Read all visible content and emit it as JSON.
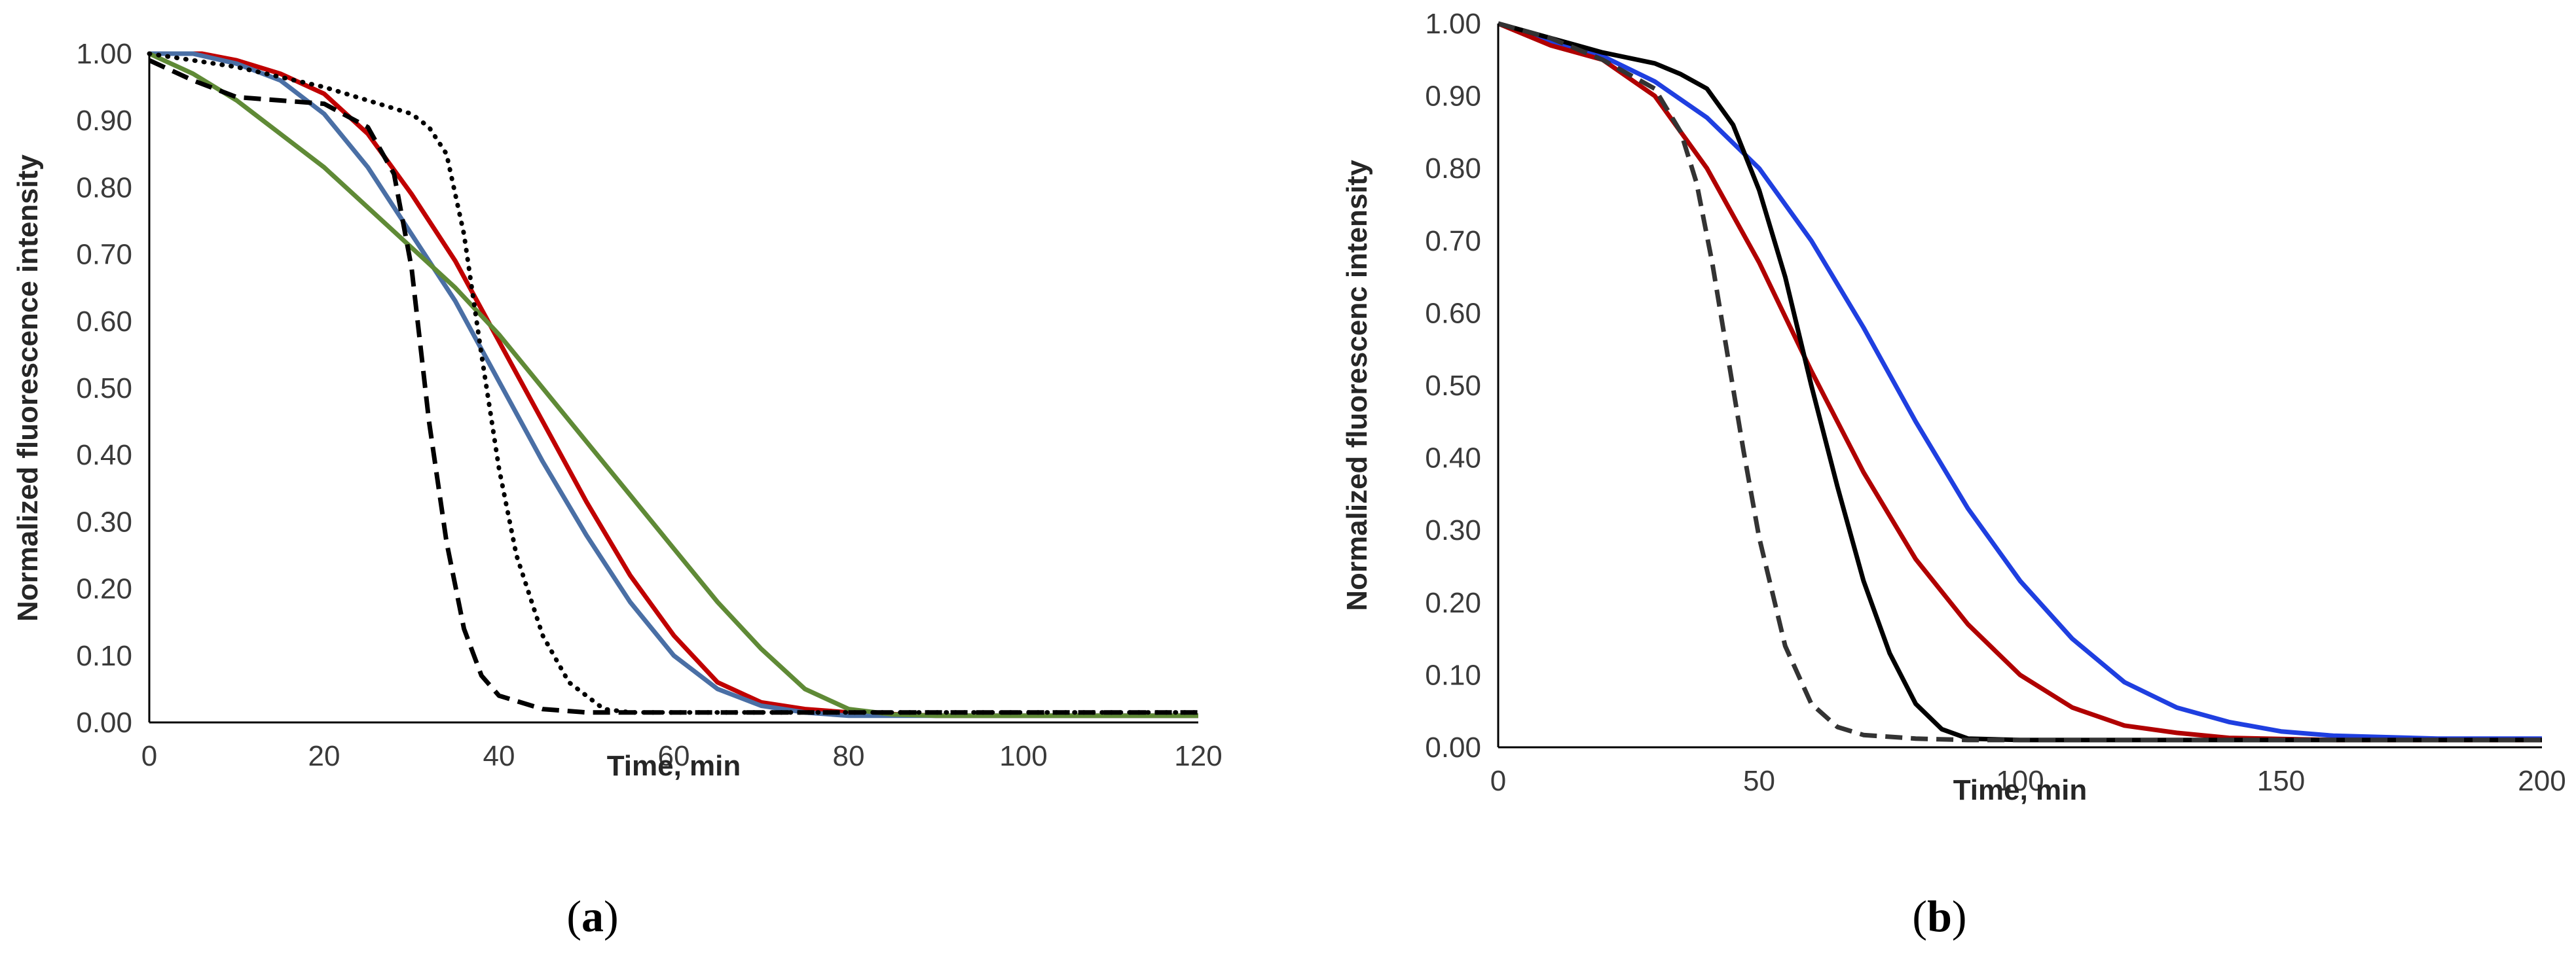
{
  "chart_data": [
    {
      "panel_label": "(a)",
      "panel_letter": "a",
      "type": "line",
      "xlabel": "Time, min",
      "ylabel": "Normalized fluorescence intensity",
      "xlim": [
        0,
        120
      ],
      "ylim": [
        0,
        1
      ],
      "xticks": [
        "0",
        "20",
        "40",
        "60",
        "80",
        "100",
        "120"
      ],
      "yticks": [
        "0.00",
        "0.10",
        "0.20",
        "0.30",
        "0.40",
        "0.50",
        "0.60",
        "0.70",
        "0.80",
        "0.90",
        "1.00"
      ],
      "grid": false,
      "series": [
        {
          "color": "#c00000",
          "style": "solid",
          "x": [
            0,
            6,
            10,
            15,
            20,
            25,
            30,
            35,
            40,
            45,
            50,
            55,
            60,
            65,
            70,
            75,
            80,
            90,
            100,
            120
          ],
          "y": [
            1.0,
            1.0,
            0.99,
            0.97,
            0.94,
            0.88,
            0.79,
            0.69,
            0.57,
            0.45,
            0.33,
            0.22,
            0.13,
            0.06,
            0.03,
            0.02,
            0.015,
            0.01,
            0.01,
            0.01
          ]
        },
        {
          "color": "#4a6fa5",
          "style": "solid",
          "x": [
            0,
            5,
            10,
            15,
            20,
            25,
            30,
            35,
            40,
            45,
            50,
            55,
            60,
            65,
            70,
            75,
            80,
            90,
            100,
            120
          ],
          "y": [
            1.0,
            1.0,
            0.985,
            0.96,
            0.91,
            0.83,
            0.73,
            0.63,
            0.51,
            0.39,
            0.28,
            0.18,
            0.1,
            0.05,
            0.025,
            0.015,
            0.01,
            0.01,
            0.01,
            0.01
          ]
        },
        {
          "color": "#5f8a36",
          "style": "solid",
          "x": [
            0,
            5,
            10,
            15,
            20,
            25,
            30,
            35,
            40,
            45,
            50,
            55,
            60,
            65,
            70,
            75,
            80,
            85,
            90,
            100,
            120
          ],
          "y": [
            1.0,
            0.97,
            0.93,
            0.88,
            0.83,
            0.77,
            0.71,
            0.65,
            0.58,
            0.5,
            0.42,
            0.34,
            0.26,
            0.18,
            0.11,
            0.05,
            0.02,
            0.012,
            0.01,
            0.01,
            0.01
          ]
        },
        {
          "color": "#000000",
          "style": "dashed",
          "x": [
            0,
            5,
            10,
            15,
            20,
            25,
            28,
            30,
            32,
            34,
            36,
            38,
            40,
            45,
            50,
            60,
            80,
            100,
            120
          ],
          "y": [
            0.99,
            0.96,
            0.935,
            0.93,
            0.925,
            0.89,
            0.82,
            0.68,
            0.45,
            0.27,
            0.14,
            0.07,
            0.04,
            0.02,
            0.015,
            0.015,
            0.015,
            0.015,
            0.015
          ]
        },
        {
          "color": "#000000",
          "style": "dotted",
          "x": [
            0,
            10,
            20,
            25,
            30,
            32,
            34,
            36,
            38,
            40,
            42,
            45,
            48,
            52,
            55,
            60,
            80,
            100,
            120
          ],
          "y": [
            1.0,
            0.98,
            0.95,
            0.93,
            0.91,
            0.89,
            0.85,
            0.73,
            0.55,
            0.38,
            0.25,
            0.13,
            0.06,
            0.02,
            0.015,
            0.015,
            0.015,
            0.015,
            0.015
          ]
        }
      ]
    },
    {
      "panel_label": "(b)",
      "panel_letter": "b",
      "type": "line",
      "xlabel": "Time, min",
      "ylabel": "Normalized fluorescenc intensity",
      "xlim": [
        0,
        200
      ],
      "ylim": [
        0,
        1
      ],
      "xticks": [
        "0",
        "50",
        "100",
        "150",
        "200"
      ],
      "yticks": [
        "0.00",
        "0.10",
        "0.20",
        "0.30",
        "0.40",
        "0.50",
        "0.60",
        "0.70",
        "0.80",
        "0.90",
        "1.00"
      ],
      "grid": false,
      "series": [
        {
          "color": "#1f3fe0",
          "style": "solid",
          "x": [
            0,
            10,
            20,
            30,
            40,
            50,
            60,
            70,
            80,
            90,
            100,
            110,
            120,
            130,
            140,
            150,
            160,
            180,
            200
          ],
          "y": [
            1.0,
            0.975,
            0.955,
            0.92,
            0.87,
            0.8,
            0.7,
            0.58,
            0.45,
            0.33,
            0.23,
            0.15,
            0.09,
            0.055,
            0.035,
            0.022,
            0.016,
            0.012,
            0.012
          ]
        },
        {
          "color": "#b00000",
          "style": "solid",
          "x": [
            0,
            10,
            20,
            30,
            40,
            50,
            60,
            70,
            80,
            90,
            100,
            110,
            120,
            130,
            140,
            160,
            180,
            200
          ],
          "y": [
            1.0,
            0.97,
            0.95,
            0.9,
            0.8,
            0.67,
            0.52,
            0.38,
            0.26,
            0.17,
            0.1,
            0.055,
            0.03,
            0.02,
            0.013,
            0.01,
            0.01,
            0.01
          ]
        },
        {
          "color": "#000000",
          "style": "solid",
          "x": [
            0,
            10,
            20,
            30,
            35,
            40,
            45,
            50,
            55,
            60,
            65,
            70,
            75,
            80,
            85,
            90,
            100,
            120,
            200
          ],
          "y": [
            1.0,
            0.98,
            0.96,
            0.945,
            0.93,
            0.91,
            0.86,
            0.77,
            0.65,
            0.5,
            0.36,
            0.23,
            0.13,
            0.06,
            0.025,
            0.012,
            0.01,
            0.01,
            0.01
          ]
        },
        {
          "color": "#333333",
          "style": "dashed",
          "x": [
            0,
            10,
            20,
            25,
            30,
            35,
            38,
            41,
            44,
            47,
            50,
            55,
            60,
            65,
            70,
            80,
            90,
            120,
            200
          ],
          "y": [
            1.0,
            0.98,
            0.95,
            0.93,
            0.91,
            0.85,
            0.78,
            0.67,
            0.54,
            0.41,
            0.29,
            0.14,
            0.06,
            0.028,
            0.017,
            0.012,
            0.01,
            0.01,
            0.01
          ]
        }
      ]
    }
  ]
}
